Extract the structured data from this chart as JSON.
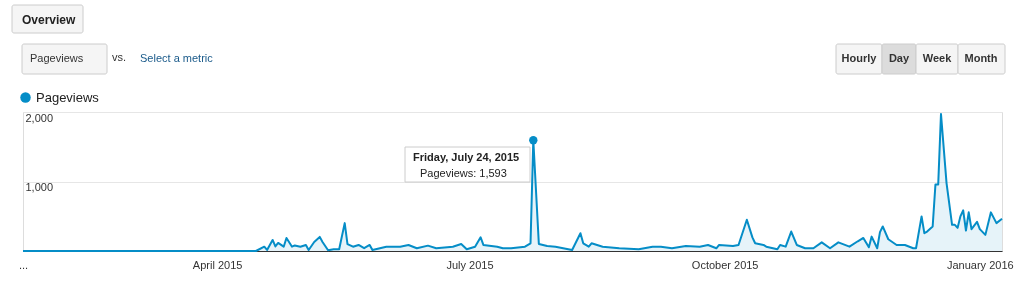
{
  "chart_data": {
    "type": "area",
    "series": [
      {
        "name": "Pageviews",
        "color": "#058dc7",
        "x": [
          "2015-01-21",
          "2015-04-15",
          "2015-04-18",
          "2015-04-19",
          "2015-04-21",
          "2015-04-22",
          "2015-04-23",
          "2015-04-25",
          "2015-04-26",
          "2015-04-28",
          "2015-04-29",
          "2015-05-01",
          "2015-05-03",
          "2015-05-04",
          "2015-05-06",
          "2015-05-08",
          "2015-05-09",
          "2015-05-11",
          "2015-05-13",
          "2015-05-15",
          "2015-05-17",
          "2015-05-18",
          "2015-05-20",
          "2015-05-22",
          "2015-05-24",
          "2015-05-26",
          "2015-05-27",
          "2015-06-01",
          "2015-06-06",
          "2015-06-09",
          "2015-06-12",
          "2015-06-16",
          "2015-06-19",
          "2015-06-25",
          "2015-06-28",
          "2015-06-30",
          "2015-07-03",
          "2015-07-05",
          "2015-07-06",
          "2015-07-11",
          "2015-07-13",
          "2015-07-16",
          "2015-07-21",
          "2015-07-23",
          "2015-07-24",
          "2015-07-26",
          "2015-07-29",
          "2015-08-01",
          "2015-08-07",
          "2015-08-10",
          "2015-08-11",
          "2015-08-13",
          "2015-08-14",
          "2015-08-18",
          "2015-08-24",
          "2015-08-31",
          "2015-09-05",
          "2015-09-08",
          "2015-09-12",
          "2015-09-17",
          "2015-09-22",
          "2015-09-25",
          "2015-09-28",
          "2015-09-29",
          "2015-10-04",
          "2015-10-06",
          "2015-10-09",
          "2015-10-11",
          "2015-10-12",
          "2015-10-15",
          "2015-10-16",
          "2015-10-20",
          "2015-10-21",
          "2015-10-23",
          "2015-10-25",
          "2015-10-27",
          "2015-10-30",
          "2015-11-02",
          "2015-11-05",
          "2015-11-08",
          "2015-11-11",
          "2015-11-15",
          "2015-11-18",
          "2015-11-20",
          "2015-11-22",
          "2015-11-23",
          "2015-11-25",
          "2015-11-26",
          "2015-11-27",
          "2015-11-29",
          "2015-12-02",
          "2015-12-05",
          "2015-12-08",
          "2015-12-09",
          "2015-12-11",
          "2015-12-12",
          "2015-12-13",
          "2015-12-15",
          "2015-12-16",
          "2015-12-17",
          "2015-12-18",
          "2015-12-20",
          "2015-12-22",
          "2015-12-23",
          "2015-12-24",
          "2015-12-25",
          "2015-12-26",
          "2015-12-27",
          "2015-12-28",
          "2015-12-29",
          "2015-12-31",
          "2016-01-01",
          "2016-01-03",
          "2016-01-05",
          "2016-01-07",
          "2016-01-09"
        ],
        "values": [
          0,
          0,
          62,
          15,
          159,
          65,
          116,
          62,
          188,
          62,
          80,
          62,
          87,
          15,
          130,
          203,
          130,
          10,
          25,
          25,
          401,
          100,
          62,
          87,
          40,
          87,
          15,
          62,
          62,
          87,
          40,
          77,
          40,
          62,
          100,
          25,
          62,
          198,
          87,
          62,
          40,
          40,
          62,
          111,
          1593,
          101,
          72,
          62,
          15,
          256,
          111,
          62,
          111,
          62,
          39,
          25,
          62,
          62,
          39,
          72,
          62,
          87,
          39,
          87,
          72,
          87,
          449,
          196,
          111,
          87,
          62,
          25,
          87,
          63,
          280,
          87,
          39,
          39,
          125,
          39,
          125,
          63,
          140,
          188,
          53,
          207,
          39,
          271,
          353,
          169,
          87,
          87,
          39,
          39,
          498,
          256,
          280,
          353,
          957,
          957,
          1971,
          977,
          377,
          377,
          333,
          498,
          585,
          295,
          556,
          314,
          420,
          314,
          232,
          556,
          401,
          464
        ]
      }
    ],
    "xlim": [
      "2015-01-21",
      "2016-01-09"
    ],
    "xticks": [
      {
        "value": "2015-01-21",
        "label": "..."
      },
      {
        "value": "2015-04-01",
        "label": "April 2015"
      },
      {
        "value": "2015-07-01",
        "label": "July 2015"
      },
      {
        "value": "2015-10-01",
        "label": "October 2015"
      },
      {
        "value": "2016-01-01",
        "label": "January 2016"
      }
    ],
    "ylim": [
      0,
      2000
    ],
    "yticks": [
      {
        "value": 0,
        "label": null
      },
      {
        "value": 1000,
        "label": "1,000"
      },
      {
        "value": 2000,
        "label": "2,000"
      }
    ],
    "grid": "y",
    "legend": "top left",
    "annotations": [
      "Overview",
      "Pageviews",
      "vs.",
      "Select a metric",
      "Hourly",
      "Day",
      "Week",
      "Month",
      {
        "text": "Friday, July 24, 2015\nPageviews: 1,593",
        "x": "2015-07-24",
        "y": 1593
      }
    ]
  }
}
